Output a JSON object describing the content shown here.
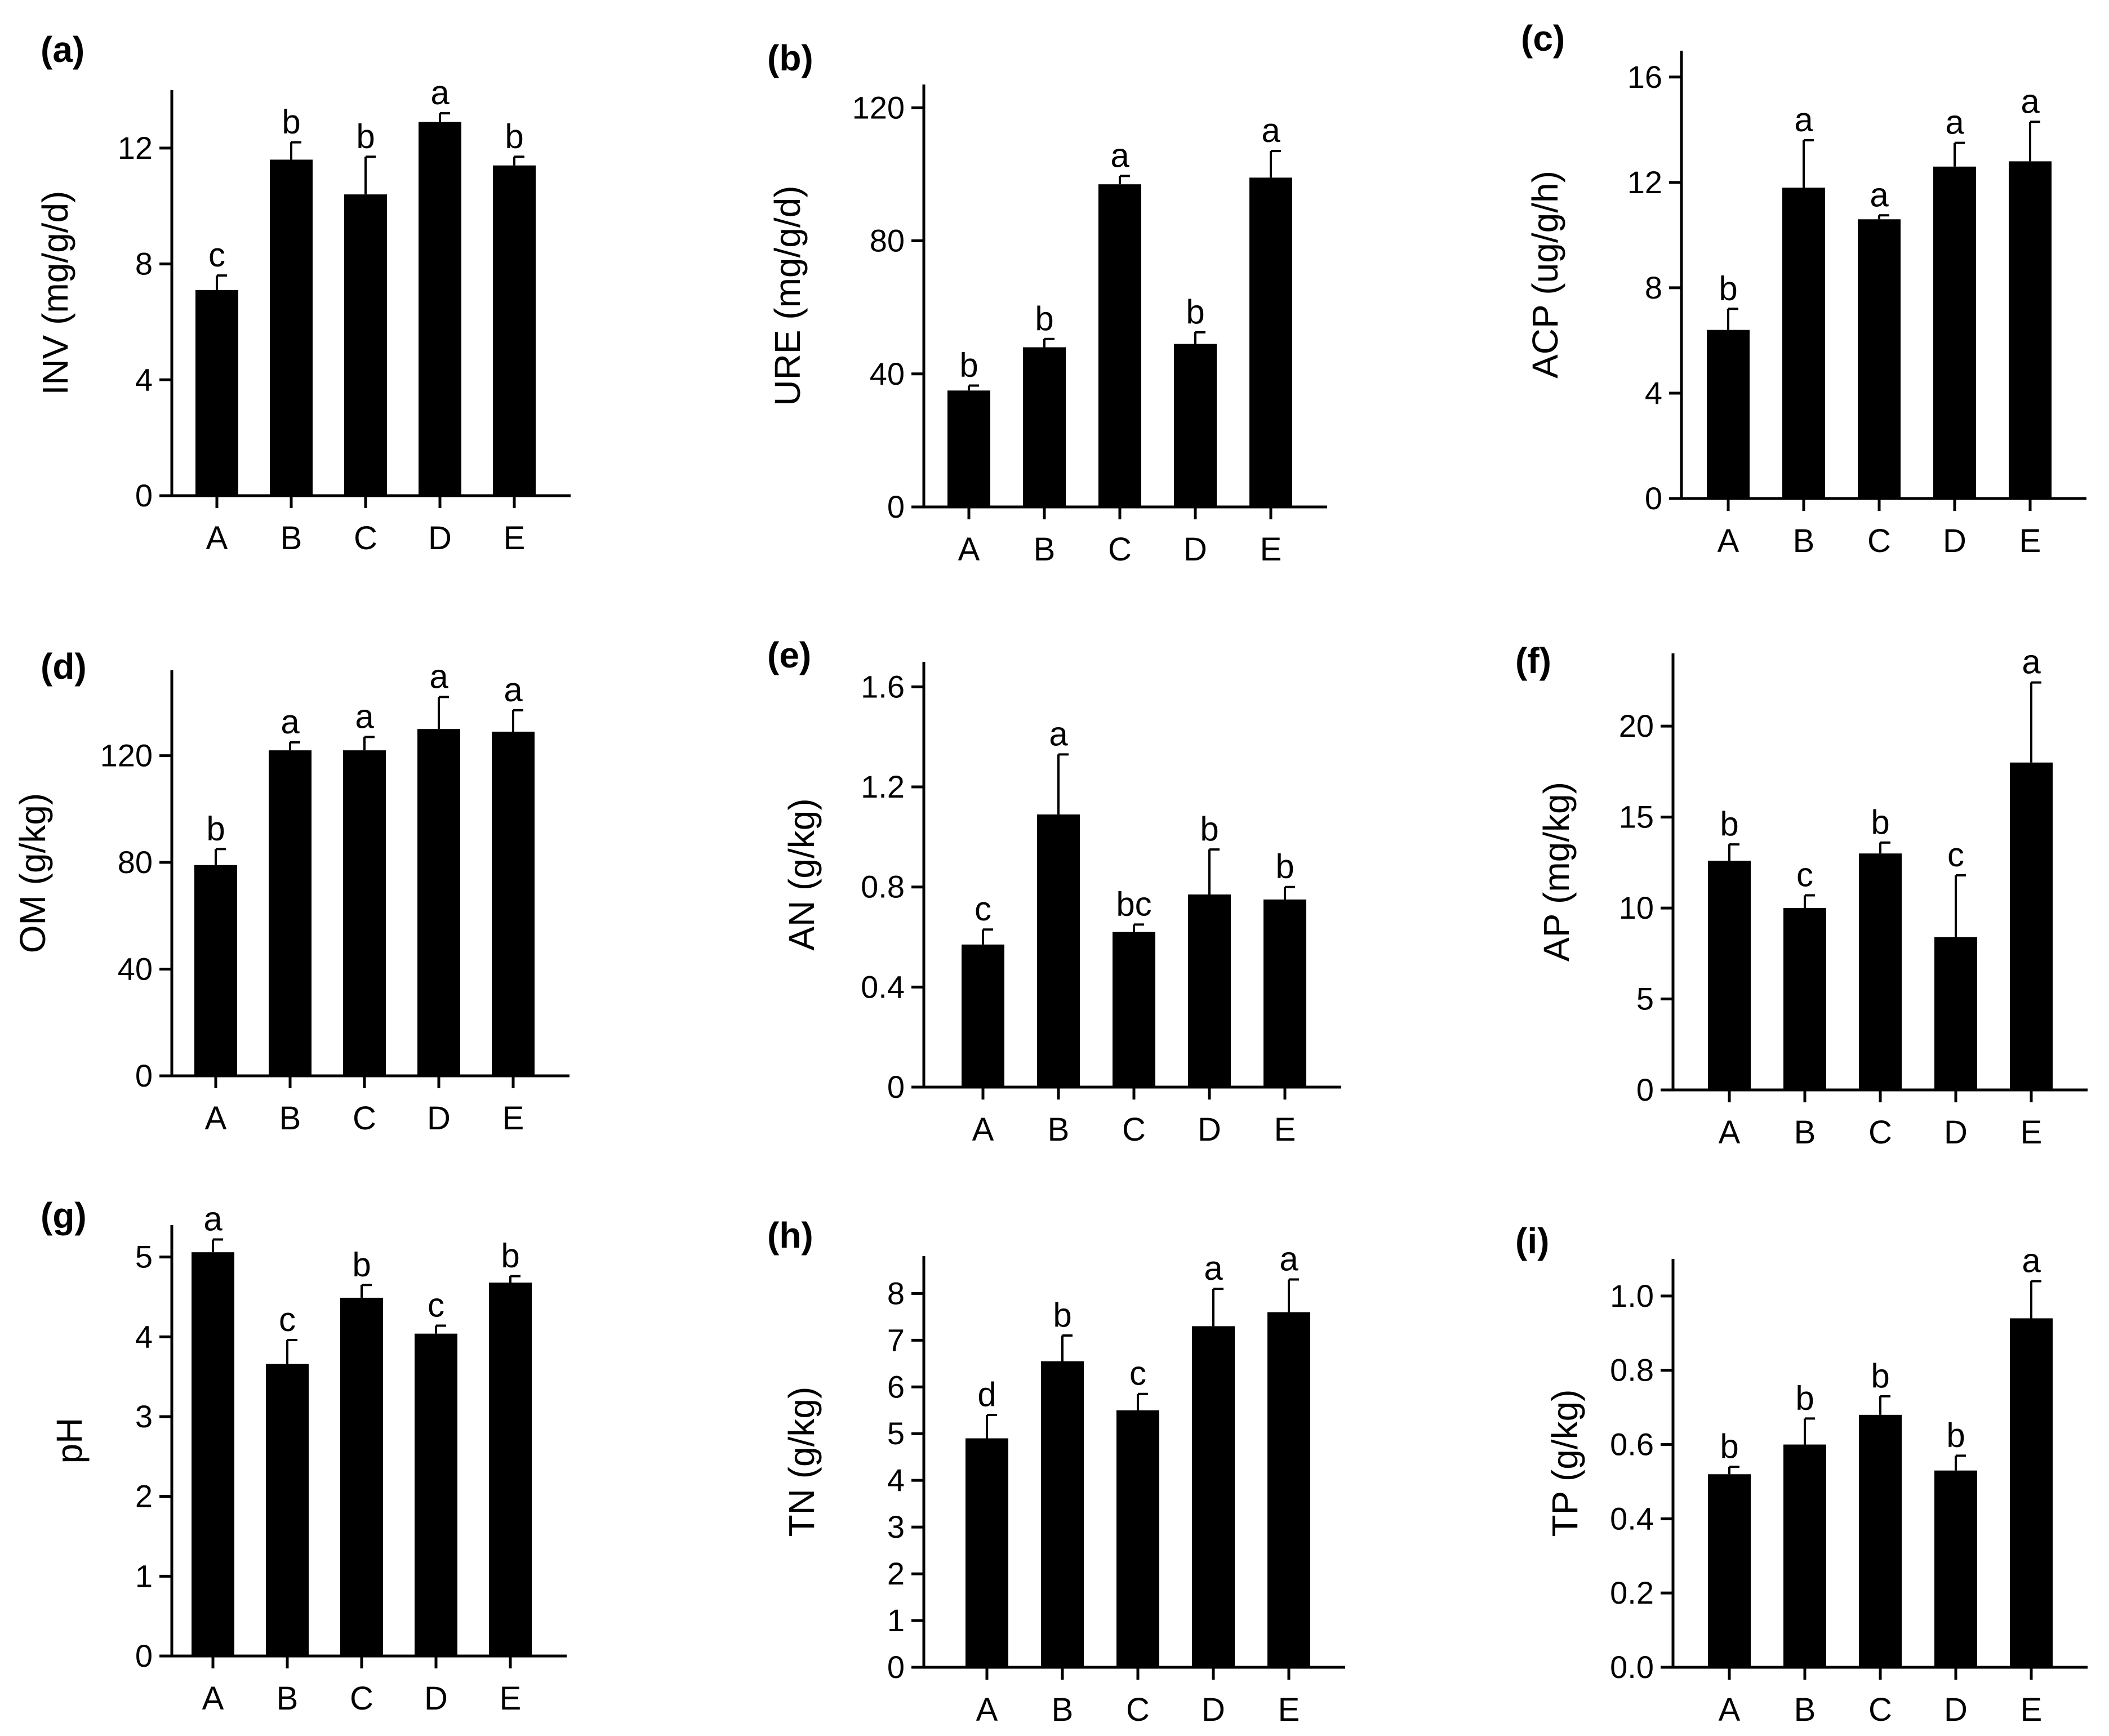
{
  "chart_data": [
    {
      "type": "bar",
      "panel": "(a)",
      "ylabel": "INV  (mg/g/d)",
      "categories": [
        "A",
        "B",
        "C",
        "D",
        "E"
      ],
      "values": [
        7.1,
        11.6,
        10.4,
        12.9,
        11.4
      ],
      "errors": [
        0.5,
        0.6,
        1.3,
        0.3,
        0.3
      ],
      "letters": [
        "c",
        "b",
        "b",
        "a",
        "b"
      ],
      "ylim": [
        0,
        14
      ],
      "yticks": [
        0,
        4,
        8,
        12
      ],
      "ytick_labels": [
        "0",
        "4",
        "8",
        "12"
      ]
    },
    {
      "type": "bar",
      "panel": "(b)",
      "ylabel": "URE (mg/g/d)",
      "categories": [
        "A",
        "B",
        "C",
        "D",
        "E"
      ],
      "values": [
        35,
        48,
        97,
        49,
        99
      ],
      "errors": [
        1.5,
        2.5,
        2.5,
        3.5,
        8
      ],
      "letters": [
        "b",
        "b",
        "a",
        "b",
        "a"
      ],
      "ylim": [
        0,
        127
      ],
      "yticks": [
        0,
        40,
        80,
        120
      ],
      "ytick_labels": [
        "0",
        "40",
        "80",
        "120"
      ]
    },
    {
      "type": "bar",
      "panel": "(c)",
      "ylabel": "ACP (ug/g/h)",
      "categories": [
        "A",
        "B",
        "C",
        "D",
        "E"
      ],
      "values": [
        6.4,
        11.8,
        10.6,
        12.6,
        12.8
      ],
      "errors": [
        0.8,
        1.8,
        0.15,
        0.9,
        1.5
      ],
      "letters": [
        "b",
        "a",
        "a",
        "a",
        "a"
      ],
      "ylim": [
        0,
        17
      ],
      "yticks": [
        0,
        4,
        8,
        12,
        16
      ],
      "ytick_labels": [
        "0",
        "4",
        "8",
        "12",
        "16"
      ]
    },
    {
      "type": "bar",
      "panel": "(d)",
      "ylabel": "OM (g/kg)",
      "categories": [
        "A",
        "B",
        "C",
        "D",
        "E"
      ],
      "values": [
        79,
        122,
        122,
        130,
        129
      ],
      "errors": [
        6,
        3,
        5,
        12,
        8
      ],
      "letters": [
        "b",
        "a",
        "a",
        "a",
        "a"
      ],
      "ylim": [
        0,
        152
      ],
      "yticks": [
        0,
        40,
        80,
        120
      ],
      "ytick_labels": [
        "0",
        "40",
        "80",
        "120"
      ]
    },
    {
      "type": "bar",
      "panel": "(e)",
      "ylabel": "AN (g/kg)",
      "categories": [
        "A",
        "B",
        "C",
        "D",
        "E"
      ],
      "values": [
        0.57,
        1.09,
        0.62,
        0.77,
        0.75
      ],
      "errors": [
        0.06,
        0.24,
        0.03,
        0.18,
        0.05
      ],
      "letters": [
        "c",
        "a",
        "bc",
        "b",
        "b"
      ],
      "ylim": [
        0,
        1.7
      ],
      "yticks": [
        0,
        0.4,
        0.8,
        1.2,
        1.6
      ],
      "ytick_labels": [
        "0",
        "0.4",
        "0.8",
        "1.2",
        "1.6"
      ]
    },
    {
      "type": "bar",
      "panel": "(f)",
      "ylabel": "AP (mg/kg)",
      "categories": [
        "A",
        "B",
        "C",
        "D",
        "E"
      ],
      "values": [
        12.6,
        10.0,
        13.0,
        8.4,
        18.0
      ],
      "errors": [
        0.9,
        0.7,
        0.6,
        3.4,
        4.4
      ],
      "letters": [
        "b",
        "c",
        "b",
        "c",
        "a"
      ],
      "ylim": [
        0,
        24
      ],
      "yticks": [
        0,
        5,
        10,
        15,
        20
      ],
      "ytick_labels": [
        "0",
        "5",
        "10",
        "15",
        "20"
      ]
    },
    {
      "type": "bar",
      "panel": "(g)",
      "ylabel": "pH",
      "categories": [
        "A",
        "B",
        "C",
        "D",
        "E"
      ],
      "values": [
        5.06,
        3.66,
        4.49,
        4.04,
        4.68
      ],
      "errors": [
        0.16,
        0.3,
        0.16,
        0.1,
        0.08
      ],
      "letters": [
        "a",
        "c",
        "b",
        "c",
        "b"
      ],
      "ylim": [
        0,
        5.4
      ],
      "yticks": [
        0,
        1,
        2,
        3,
        4,
        5
      ],
      "ytick_labels": [
        "0",
        "1",
        "2",
        "3",
        "4",
        "5"
      ]
    },
    {
      "type": "bar",
      "panel": "(h)",
      "ylabel": "TN (g/kg)",
      "categories": [
        "A",
        "B",
        "C",
        "D",
        "E"
      ],
      "values": [
        4.9,
        6.55,
        5.5,
        7.3,
        7.6
      ],
      "errors": [
        0.5,
        0.55,
        0.35,
        0.8,
        0.7
      ],
      "letters": [
        "d",
        "b",
        "c",
        "a",
        "a"
      ],
      "ylim": [
        0,
        8.8
      ],
      "yticks": [
        0,
        1,
        2,
        3,
        4,
        5,
        6,
        7,
        8
      ],
      "ytick_labels": [
        "0",
        "1",
        "2",
        "3",
        "4",
        "5",
        "6",
        "7",
        "8"
      ]
    },
    {
      "type": "bar",
      "panel": "(i)",
      "ylabel": "TP  (g/kg)",
      "categories": [
        "A",
        "B",
        "C",
        "D",
        "E"
      ],
      "values": [
        0.52,
        0.6,
        0.68,
        0.53,
        0.94
      ],
      "errors": [
        0.02,
        0.07,
        0.05,
        0.04,
        0.1
      ],
      "letters": [
        "b",
        "b",
        "b",
        "b",
        "a"
      ],
      "ylim": [
        0,
        1.1
      ],
      "yticks": [
        0,
        0.2,
        0.4,
        0.6,
        0.8,
        1.0
      ],
      "ytick_labels": [
        "0.0",
        "0.2",
        "0.4",
        "0.6",
        "0.8",
        "1.0"
      ]
    }
  ]
}
